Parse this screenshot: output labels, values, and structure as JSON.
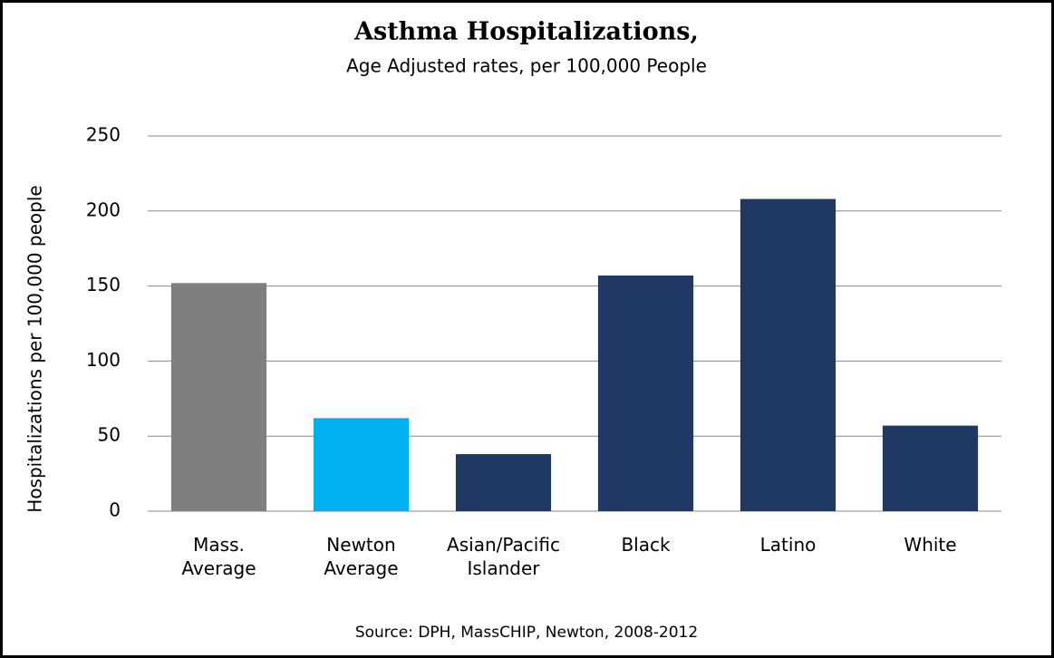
{
  "chart_data": {
    "type": "bar",
    "title": "Asthma Hospitalizations,",
    "subtitle": "Age Adjusted rates, per 100,000 People",
    "y_label": "Hospitalizations per 100,000 people",
    "source": "Source: DPH, MassCHIP, Newton, 2008-2012",
    "categories": [
      "Mass. Average",
      "Newton Average",
      "Asian/Pacific Islander",
      "Black",
      "Latino",
      "White"
    ],
    "values": [
      152,
      62,
      38,
      157,
      208,
      57
    ],
    "colors": [
      "#7f7f7f",
      "#00b0f0",
      "#1f3864",
      "#1f3864",
      "#1f3864",
      "#1f3864"
    ],
    "ylim": [
      0,
      250
    ],
    "yticks": [
      0,
      50,
      100,
      150,
      200,
      250
    ],
    "grid": true
  }
}
